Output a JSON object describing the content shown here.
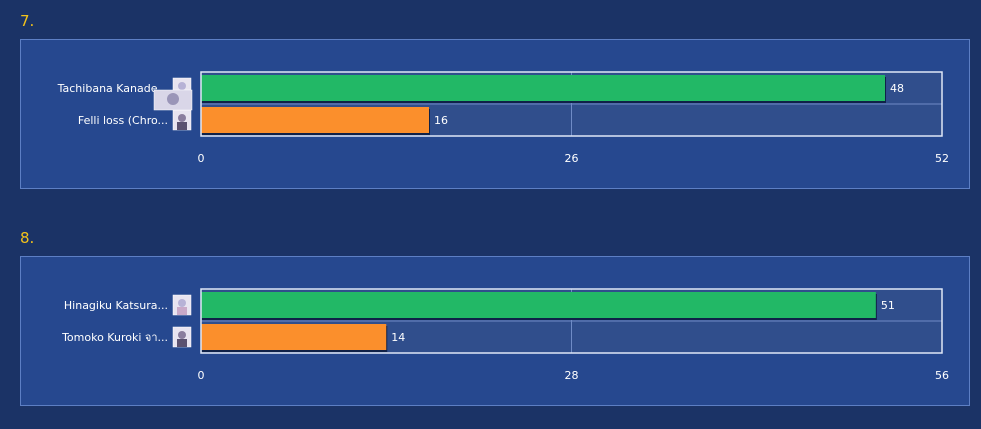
{
  "matches": [
    {
      "number": "7.",
      "number_suffix": ""
    },
    {
      "number": "8.",
      "number_suffix": ""
    }
  ],
  "colors": {
    "background": "#1b3366",
    "panel": "#26488f",
    "plot_area": "#304e8c",
    "bar_winner": "#22b866",
    "bar_loser": "#fb8f2c",
    "number": "#f2c21b"
  },
  "chart_data": [
    {
      "type": "bar",
      "orientation": "horizontal",
      "categories": [
        "Tachibana Kanade...",
        "Felli loss (Chro..."
      ],
      "values": [
        48,
        16
      ],
      "xlim": [
        0,
        52
      ],
      "ticks": [
        0,
        26,
        52
      ],
      "grid": true,
      "avatar_icons": [
        "character-avatar-icon",
        "character-avatar-icon"
      ]
    },
    {
      "type": "bar",
      "orientation": "horizontal",
      "categories": [
        "Hinagiku Katsura...",
        "Tomoko Kuroki จา..."
      ],
      "values": [
        51,
        14
      ],
      "xlim": [
        0,
        56
      ],
      "ticks": [
        0,
        28,
        56
      ],
      "grid": true,
      "avatar_icons": [
        "character-avatar-icon",
        "character-avatar-icon"
      ]
    }
  ]
}
